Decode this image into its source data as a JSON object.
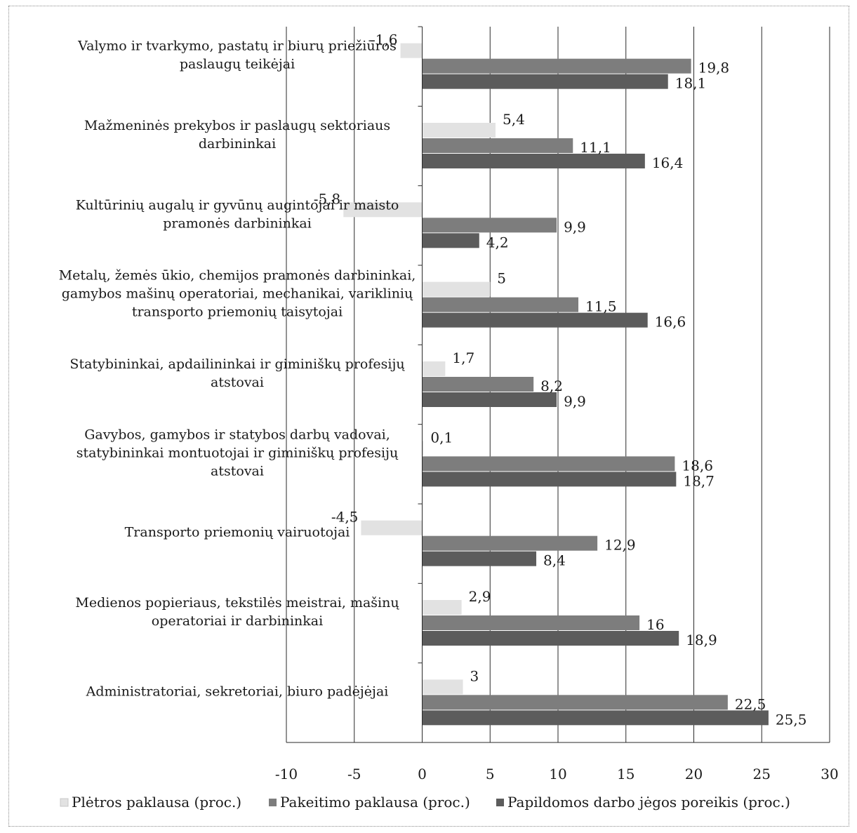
{
  "page_fragment": "Pakeitimo paklausa",
  "chart_data": {
    "type": "bar",
    "orientation": "horizontal",
    "categories": [
      [
        "Valymo ir tvarkymo, pastatų ir biurų priežiūros",
        "paslaugų teikėjai"
      ],
      [
        "Mažmeninės prekybos ir paslaugų sektoriaus",
        "darbininkai"
      ],
      [
        "Kultūrinių augalų ir gyvūnų augintojai ir maisto",
        "pramonės darbininkai"
      ],
      [
        "Metalų, žemės ūkio, chemijos pramonės darbininkai,",
        "gamybos mašinų operatoriai, mechanikai, variklinių",
        "transporto priemonių taisytojai"
      ],
      [
        "Statybininkai, apdailininkai ir giminiškų profesijų",
        "atstovai"
      ],
      [
        "Gavybos, gamybos ir statybos darbų vadovai,",
        "statybininkai montuotojai ir giminiškų profesijų",
        "atstovai"
      ],
      [
        "Transporto priemonių vairuotojai"
      ],
      [
        "Medienos popieriaus, tekstilės meistrai, mašinų",
        "operatoriai ir darbininkai"
      ],
      [
        "Administratoriai, sekretoriai, biuro padėjėjai"
      ]
    ],
    "series": [
      {
        "name": "Plėtros paklausa (proc.)",
        "color": "#e2e2e2",
        "values": [
          -1.6,
          5.4,
          -5.8,
          5,
          1.7,
          0.1,
          -4.5,
          2.9,
          3
        ],
        "labels": [
          "-1,6",
          "5,4",
          "-5,8",
          "5",
          "1,7",
          "0,1",
          "-4,5",
          "2,9",
          "3"
        ]
      },
      {
        "name": "Pakeitimo paklausa (proc.)",
        "color": "#7d7d7d",
        "values": [
          19.8,
          11.1,
          9.9,
          11.5,
          8.2,
          18.6,
          12.9,
          16,
          22.5
        ],
        "labels": [
          "19,8",
          "11,1",
          "9,9",
          "11,5",
          "8,2",
          "18,6",
          "12,9",
          "16",
          "22,5"
        ]
      },
      {
        "name": "Papildomos darbo jėgos poreikis (proc.)",
        "color": "#5c5c5c",
        "values": [
          18.1,
          16.4,
          4.2,
          16.6,
          9.9,
          18.7,
          8.4,
          18.9,
          25.5
        ],
        "labels": [
          "18,1",
          "16,4",
          "4,2",
          "16,6",
          "9,9",
          "18,7",
          "8,4",
          "18,9",
          "25,5"
        ]
      }
    ],
    "xlim": [
      -10,
      30
    ],
    "xticks": [
      -10,
      -5,
      0,
      5,
      10,
      15,
      20,
      25,
      30
    ],
    "grid": true,
    "legend_position": "bottom"
  }
}
